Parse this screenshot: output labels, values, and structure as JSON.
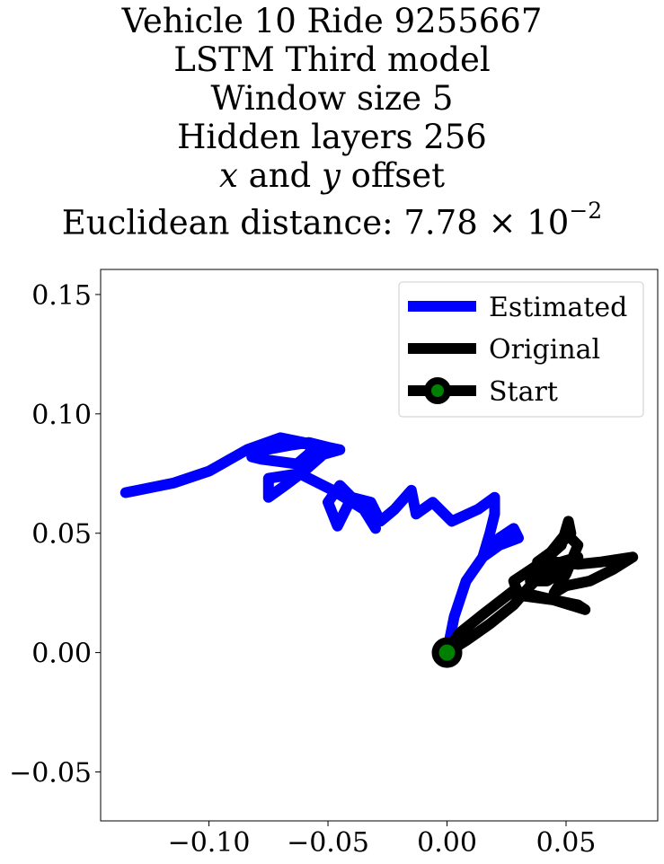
{
  "title_lines": {
    "line1": "Vehicle 10 Ride 9255667",
    "line2": "LSTM Third model",
    "line3": "Window size 5",
    "line4": "Hidden layers 256",
    "line5_x": "x",
    "line5_and": " and ",
    "line5_y": "y",
    "line5_rest": " offset",
    "line6_prefix": "Euclidean distance: 7.78",
    "line6_times": " × 10",
    "line6_exp": "−2"
  },
  "chart_data": {
    "type": "line",
    "title": "Vehicle 10 Ride 9255667 / LSTM Third model / Window size 5 / Hidden layers 256 / x and y offset / Euclidean distance: 7.78 × 10^-2",
    "xlabel": "",
    "ylabel": "",
    "xlim": [
      -0.1455,
      0.0885
    ],
    "ylim": [
      -0.0705,
      0.1605
    ],
    "xticks": [
      -0.1,
      -0.05,
      0.0,
      0.05
    ],
    "xtick_labels": [
      "−0.10",
      "−0.05",
      "0.00",
      "0.05"
    ],
    "yticks": [
      -0.05,
      0.0,
      0.05,
      0.1,
      0.15
    ],
    "ytick_labels": [
      "−0.05",
      "0.00",
      "0.05",
      "0.10",
      "0.15"
    ],
    "grid": false,
    "legend_position": "top-right",
    "series": [
      {
        "name": "Estimated",
        "color": "#0000ff",
        "x": [
          0.0,
          0.003,
          0.008,
          0.015,
          0.022,
          0.028,
          0.03,
          0.022,
          0.015,
          0.018,
          0.02,
          0.02,
          0.013,
          0.002,
          -0.006,
          -0.013,
          -0.015,
          -0.022,
          -0.028,
          -0.032,
          -0.04,
          -0.046,
          -0.05,
          -0.045,
          -0.04,
          -0.035,
          -0.03,
          -0.035,
          -0.048,
          -0.062,
          -0.075,
          -0.075,
          -0.068,
          -0.06,
          -0.052,
          -0.056,
          -0.063,
          -0.078,
          -0.082,
          -0.076,
          -0.065,
          -0.058,
          -0.05,
          -0.045,
          -0.052,
          -0.06,
          -0.07,
          -0.084,
          -0.1,
          -0.115,
          -0.13,
          -0.135
        ],
        "y": [
          0.0,
          0.015,
          0.03,
          0.04,
          0.048,
          0.052,
          0.048,
          0.045,
          0.04,
          0.05,
          0.058,
          0.065,
          0.06,
          0.055,
          0.063,
          0.058,
          0.068,
          0.06,
          0.055,
          0.063,
          0.065,
          0.053,
          0.063,
          0.07,
          0.065,
          0.06,
          0.052,
          0.06,
          0.068,
          0.075,
          0.073,
          0.065,
          0.07,
          0.076,
          0.083,
          0.085,
          0.079,
          0.081,
          0.082,
          0.085,
          0.087,
          0.088,
          0.086,
          0.085,
          0.083,
          0.088,
          0.09,
          0.085,
          0.076,
          0.071,
          0.068,
          0.067
        ]
      },
      {
        "name": "Original",
        "color": "#000000",
        "x": [
          0.0,
          0.008,
          0.018,
          0.028,
          0.035,
          0.04,
          0.048,
          0.055,
          0.05,
          0.042,
          0.035,
          0.038,
          0.045,
          0.055,
          0.065,
          0.078,
          0.07,
          0.06,
          0.05,
          0.045,
          0.05,
          0.055,
          0.05,
          0.042,
          0.038,
          0.045,
          0.052,
          0.051,
          0.048,
          0.04,
          0.028,
          0.03,
          0.045,
          0.058,
          0.055,
          0.045,
          0.028,
          0.015,
          0.005,
          0.0
        ],
        "y": [
          0.0,
          0.005,
          0.012,
          0.02,
          0.028,
          0.033,
          0.038,
          0.04,
          0.035,
          0.03,
          0.03,
          0.035,
          0.038,
          0.037,
          0.038,
          0.04,
          0.035,
          0.03,
          0.028,
          0.025,
          0.033,
          0.045,
          0.05,
          0.04,
          0.038,
          0.043,
          0.05,
          0.055,
          0.045,
          0.038,
          0.03,
          0.024,
          0.022,
          0.018,
          0.02,
          0.022,
          0.026,
          0.016,
          0.008,
          0.0
        ]
      },
      {
        "name": "Start",
        "color": "#000000",
        "marker_fill": "#008000",
        "x": [
          0.0
        ],
        "y": [
          0.0
        ]
      }
    ]
  }
}
